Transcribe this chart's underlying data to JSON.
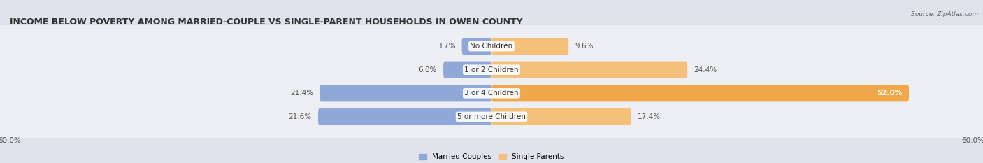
{
  "title": "INCOME BELOW POVERTY AMONG MARRIED-COUPLE VS SINGLE-PARENT HOUSEHOLDS IN OWEN COUNTY",
  "source": "Source: ZipAtlas.com",
  "categories": [
    "No Children",
    "1 or 2 Children",
    "3 or 4 Children",
    "5 or more Children"
  ],
  "married_values": [
    3.7,
    6.0,
    21.4,
    21.6
  ],
  "single_values": [
    9.6,
    24.4,
    52.0,
    17.4
  ],
  "married_color": "#8fa8d8",
  "single_color": "#f5c07a",
  "single_color_strong": "#f0a84a",
  "axis_max": 60.0,
  "married_label": "Married Couples",
  "single_label": "Single Parents",
  "bar_height": 0.72,
  "background_color": "#e0e3ec",
  "row_bg_color": "#eeeff4",
  "title_fontsize": 9.0,
  "label_fontsize": 7.5,
  "axis_label_fontsize": 7.5,
  "category_fontsize": 7.5,
  "value_label_color_dark": "#555555",
  "value_label_color_white": "#ffffff"
}
